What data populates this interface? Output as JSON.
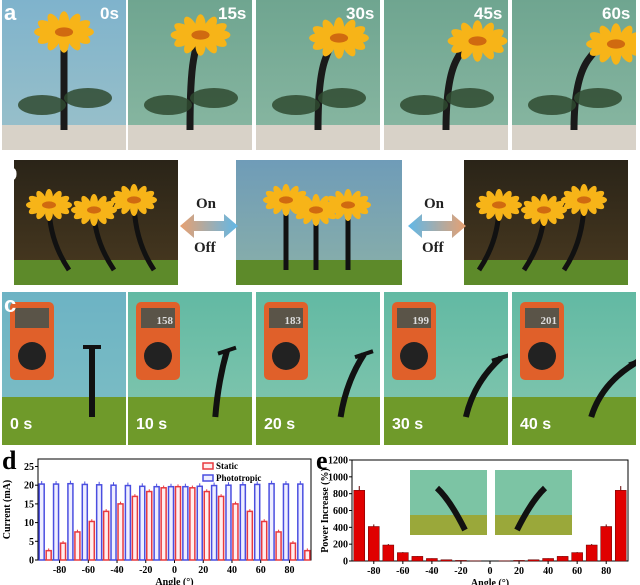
{
  "panel_labels": {
    "a": "a",
    "b": "b",
    "c": "c",
    "d": "d",
    "e": "e"
  },
  "row_a": {
    "times": [
      "0s",
      "15s",
      "30s",
      "45s",
      "60s"
    ]
  },
  "row_b": {
    "on_label": "On",
    "off_label": "Off"
  },
  "row_c": {
    "times": [
      "0 s",
      "10 s",
      "20 s",
      "30 s",
      "40 s"
    ],
    "meter_readings": [
      "",
      "158",
      "183",
      "199",
      "201"
    ]
  },
  "colors": {
    "static": "#e8393f",
    "phototropic": "#4a4ee0",
    "power_bar": "#e00000"
  },
  "chart_data": [
    {
      "type": "bar",
      "panel": "d",
      "xlabel": "Angle (°)",
      "ylabel": "Current (mA)",
      "ylim": [
        0,
        27
      ],
      "yticks": [
        0,
        5,
        10,
        15,
        20,
        25
      ],
      "xticks": [
        -80,
        -60,
        -40,
        -20,
        0,
        20,
        40,
        60,
        80
      ],
      "categories": [
        -90,
        -80,
        -70,
        -60,
        -50,
        -40,
        -30,
        -20,
        -10,
        0,
        10,
        20,
        30,
        40,
        50,
        60,
        70,
        80,
        90
      ],
      "series": [
        {
          "name": "Static",
          "values": [
            2.5,
            4.5,
            7.5,
            10.3,
            13,
            15,
            17,
            18.3,
            19.3,
            19.6,
            19.3,
            18.3,
            17,
            15,
            13,
            10.3,
            7.5,
            4.5,
            2.5
          ]
        },
        {
          "name": "Phototropic",
          "values": [
            20.3,
            20.3,
            20.4,
            20.2,
            20.1,
            20,
            19.9,
            19.7,
            19.6,
            19.6,
            19.6,
            19.7,
            19.9,
            20,
            20.1,
            20.2,
            20.4,
            20.3,
            20.3
          ]
        }
      ],
      "legend": "top-center",
      "error_bars": true
    },
    {
      "type": "bar",
      "panel": "e",
      "xlabel": "Angle (°)",
      "ylabel": "Power Increase (%)",
      "ylim": [
        0,
        1200
      ],
      "yticks": [
        0,
        200,
        400,
        600,
        800,
        1000,
        1200
      ],
      "xticks": [
        -80,
        -60,
        -40,
        -20,
        0,
        20,
        40,
        60,
        80
      ],
      "categories": [
        -90,
        -80,
        -70,
        -60,
        -50,
        -40,
        -30,
        -20,
        -10,
        0,
        10,
        20,
        30,
        40,
        50,
        60,
        70,
        80,
        90
      ],
      "values": [
        840,
        410,
        190,
        100,
        55,
        30,
        15,
        7,
        3,
        0,
        3,
        7,
        15,
        30,
        55,
        100,
        190,
        410,
        840
      ],
      "error_bars": true,
      "insets": 2
    }
  ]
}
